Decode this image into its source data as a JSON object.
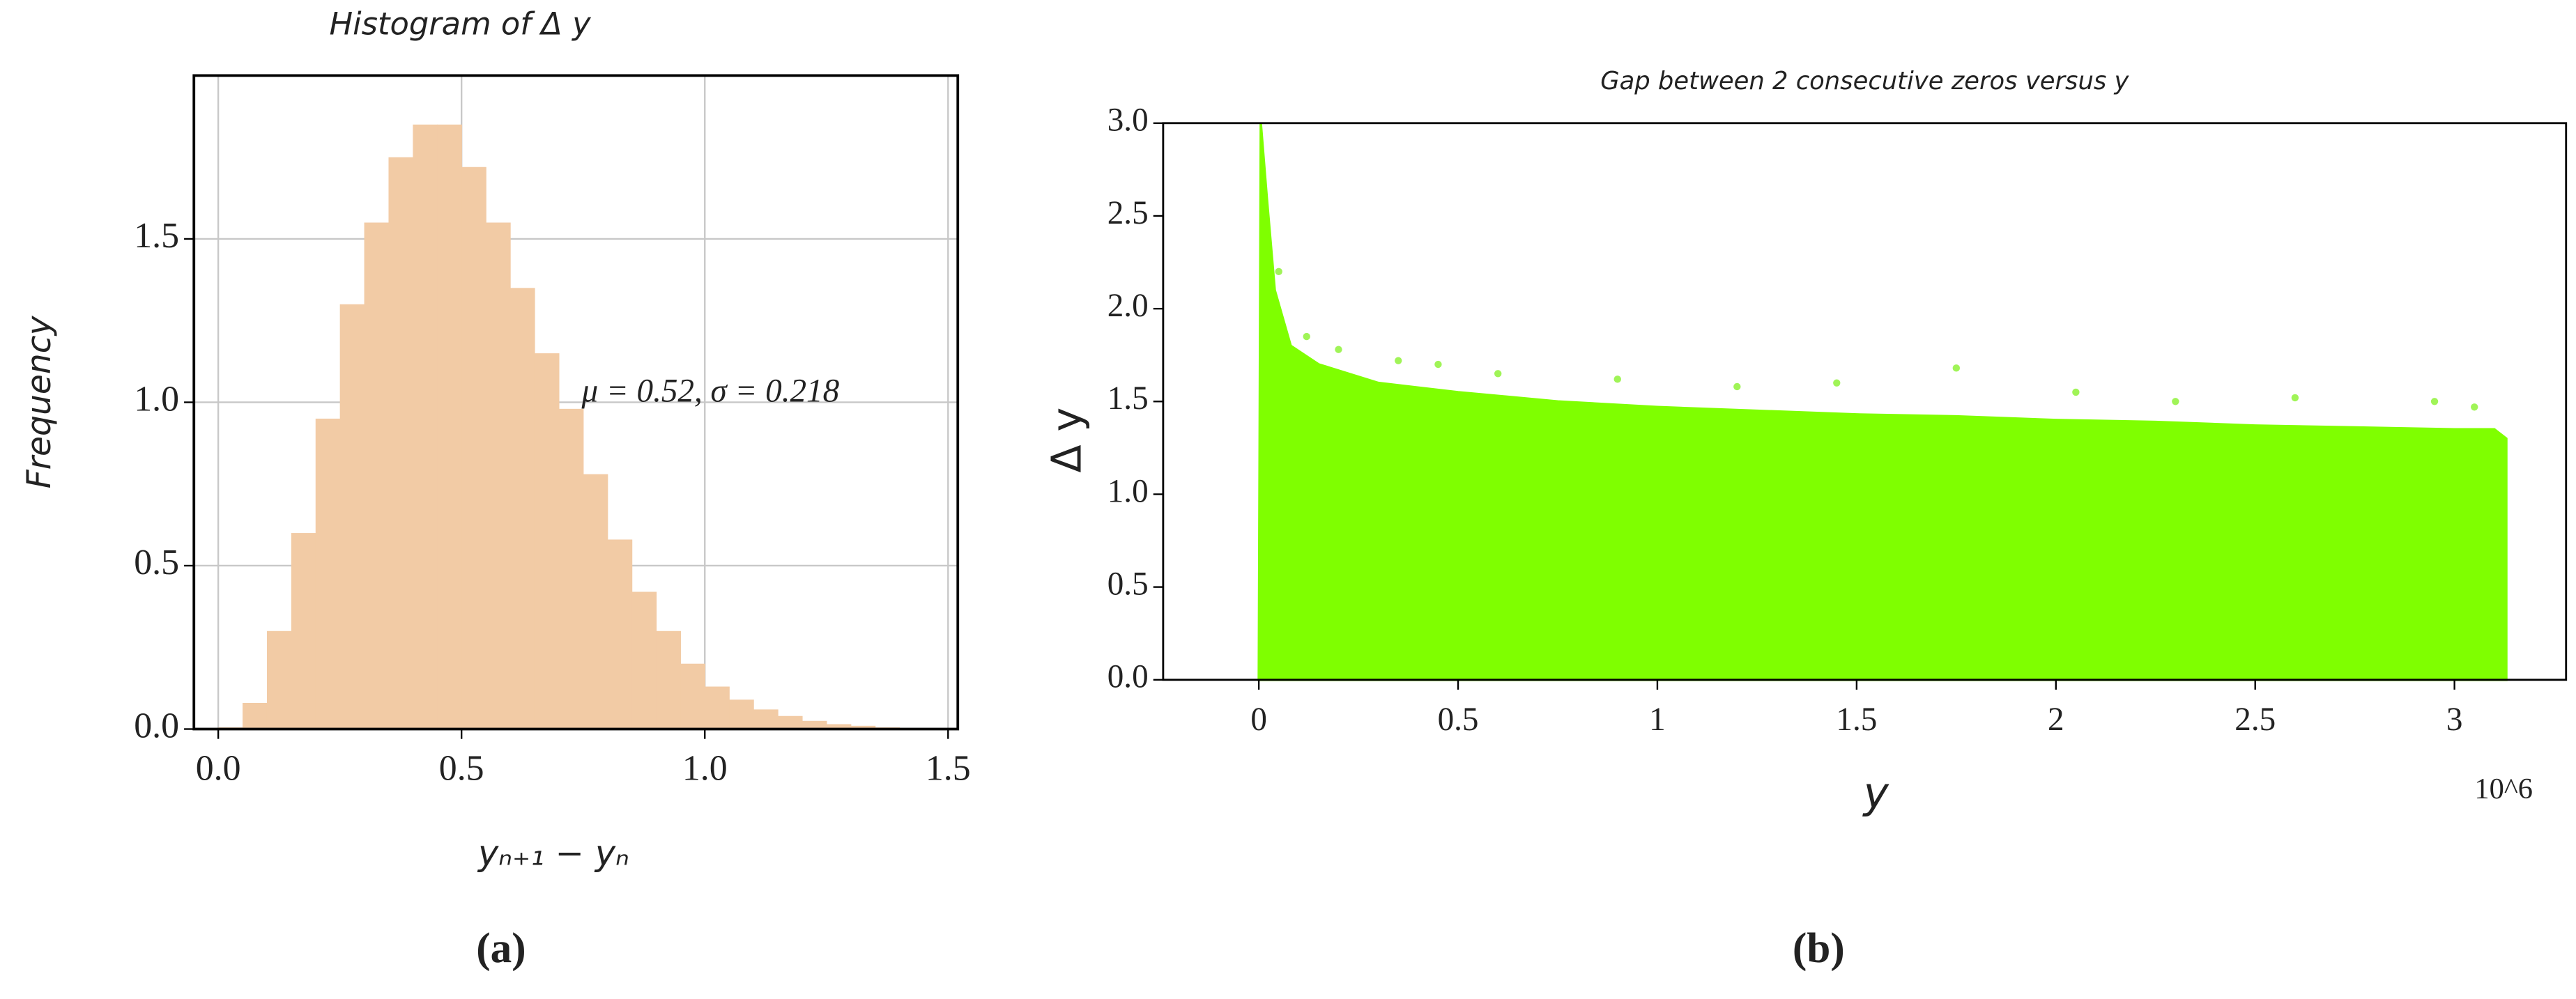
{
  "chart_data": [
    {
      "type": "histogram",
      "title": "Histogram of Δ y",
      "x_label": "yₙ₊₁ − yₙ",
      "y_label": "Frequency",
      "annotation": "μ = 0.52, σ = 0.218",
      "caption": "(a)",
      "color": "#f2cba5",
      "grid": true,
      "bins": [
        0,
        0.05,
        0.1,
        0.15,
        0.2,
        0.25,
        0.3,
        0.35,
        0.4,
        0.45,
        0.5,
        0.55,
        0.6,
        0.65,
        0.7,
        0.75,
        0.8,
        0.85,
        0.9,
        0.95,
        1.0,
        1.05,
        1.1,
        1.15,
        1.2,
        1.25,
        1.3,
        1.35,
        1.4,
        1.45,
        1.5
      ],
      "values": [
        0.005,
        0.08,
        0.3,
        0.6,
        0.95,
        1.3,
        1.55,
        1.75,
        1.85,
        1.85,
        1.72,
        1.55,
        1.35,
        1.15,
        0.98,
        0.78,
        0.58,
        0.42,
        0.3,
        0.2,
        0.13,
        0.09,
        0.06,
        0.04,
        0.025,
        0.015,
        0.01,
        0.005,
        0.003,
        0.001
      ],
      "xlim": [
        -0.05,
        1.52
      ],
      "ylim": [
        0,
        2.0
      ],
      "xticks": [
        {
          "value": 0,
          "label": "0.0"
        },
        0.5,
        {
          "value": 1,
          "label": "1.0"
        },
        1.5
      ],
      "yticks": [
        {
          "value": 0,
          "label": "0.0"
        },
        0.5,
        {
          "value": 1,
          "label": "1.0"
        },
        1.5
      ]
    },
    {
      "type": "scatter",
      "title": "Gap between 2 consecutive zeros versus y",
      "x_label": "y",
      "y_label": "Δ y",
      "x_offset_label": "10^6",
      "caption": "(b)",
      "grid": false,
      "series": [
        {
          "type": "area",
          "color": "#7fff00",
          "x": [
            0,
            0.005,
            0.02,
            0.04,
            0.08,
            0.15,
            0.3,
            0.5,
            0.75,
            1.0,
            1.25,
            1.5,
            1.75,
            2.0,
            2.25,
            2.5,
            2.75,
            3.0,
            3.1,
            3.13,
            3.13
          ],
          "values": [
            0,
            3.0,
            2.6,
            2.1,
            1.8,
            1.7,
            1.6,
            1.55,
            1.5,
            1.47,
            1.45,
            1.43,
            1.42,
            1.4,
            1.39,
            1.37,
            1.36,
            1.35,
            1.35,
            1.3,
            0
          ]
        },
        {
          "type": "scatter",
          "color": "#8ff23a",
          "x": [
            0.05,
            0.12,
            0.2,
            0.35,
            0.45,
            0.6,
            0.9,
            1.2,
            1.45,
            1.75,
            2.05,
            2.3,
            2.6,
            2.95,
            3.05
          ],
          "values": [
            2.2,
            1.85,
            1.78,
            1.72,
            1.7,
            1.65,
            1.62,
            1.58,
            1.6,
            1.68,
            1.55,
            1.5,
            1.52,
            1.5,
            1.47
          ]
        }
      ],
      "xlim": [
        -0.24,
        3.28
      ],
      "ylim": [
        0,
        3.0
      ],
      "xticks": [
        0,
        0.5,
        1,
        1.5,
        2,
        2.5,
        3
      ],
      "yticks": [
        {
          "value": 0,
          "label": "0.0"
        },
        0.5,
        {
          "value": 1,
          "label": "1.0"
        },
        1.5,
        {
          "value": 2,
          "label": "2.0"
        },
        2.5,
        {
          "value": 3,
          "label": "3.0"
        }
      ]
    }
  ]
}
